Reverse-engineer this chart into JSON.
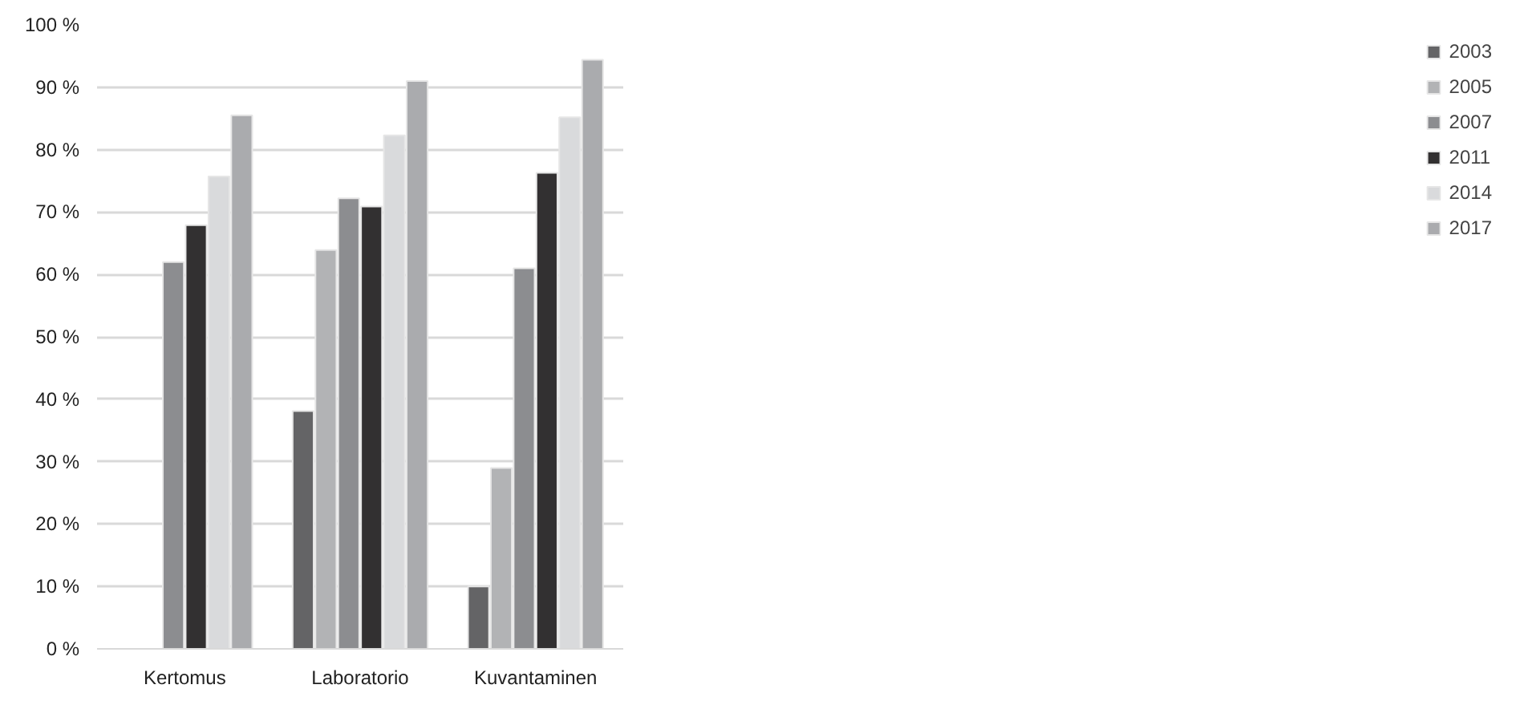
{
  "chart_data": {
    "type": "bar",
    "categories": [
      "Kertomus",
      "Laboratorio",
      "Kuvantaminen"
    ],
    "series": [
      {
        "name": "2003",
        "color": "#646466",
        "values": [
          null,
          38.1,
          10.0
        ]
      },
      {
        "name": "2005",
        "color": "#b2b3b5",
        "values": [
          null,
          63.9,
          29.0
        ]
      },
      {
        "name": "2007",
        "color": "#8c8d90",
        "values": [
          62.0,
          72.2,
          61.0
        ]
      },
      {
        "name": "2011",
        "color": "#323031",
        "values": [
          67.9,
          70.9,
          76.3
        ]
      },
      {
        "name": "2014",
        "color": "#d9dadc",
        "values": [
          75.7,
          82.3,
          85.2
        ]
      },
      {
        "name": "2017",
        "color": "#aaabae",
        "values": [
          85.5,
          91.0,
          94.4
        ]
      }
    ],
    "ylim": [
      0,
      100
    ],
    "yticks": [
      {
        "value": 0,
        "label": "0 %"
      },
      {
        "value": 10,
        "label": "10 %"
      },
      {
        "value": 20,
        "label": "20 %"
      },
      {
        "value": 30,
        "label": "30 %"
      },
      {
        "value": 40,
        "label": "40 %"
      },
      {
        "value": 50,
        "label": "50 %"
      },
      {
        "value": 60,
        "label": "60 %"
      },
      {
        "value": 70,
        "label": "70 %"
      },
      {
        "value": 80,
        "label": "80 %"
      },
      {
        "value": 90,
        "label": "90 %"
      },
      {
        "value": 100,
        "label": "100 %"
      }
    ],
    "grid": "y",
    "legend": "right"
  }
}
